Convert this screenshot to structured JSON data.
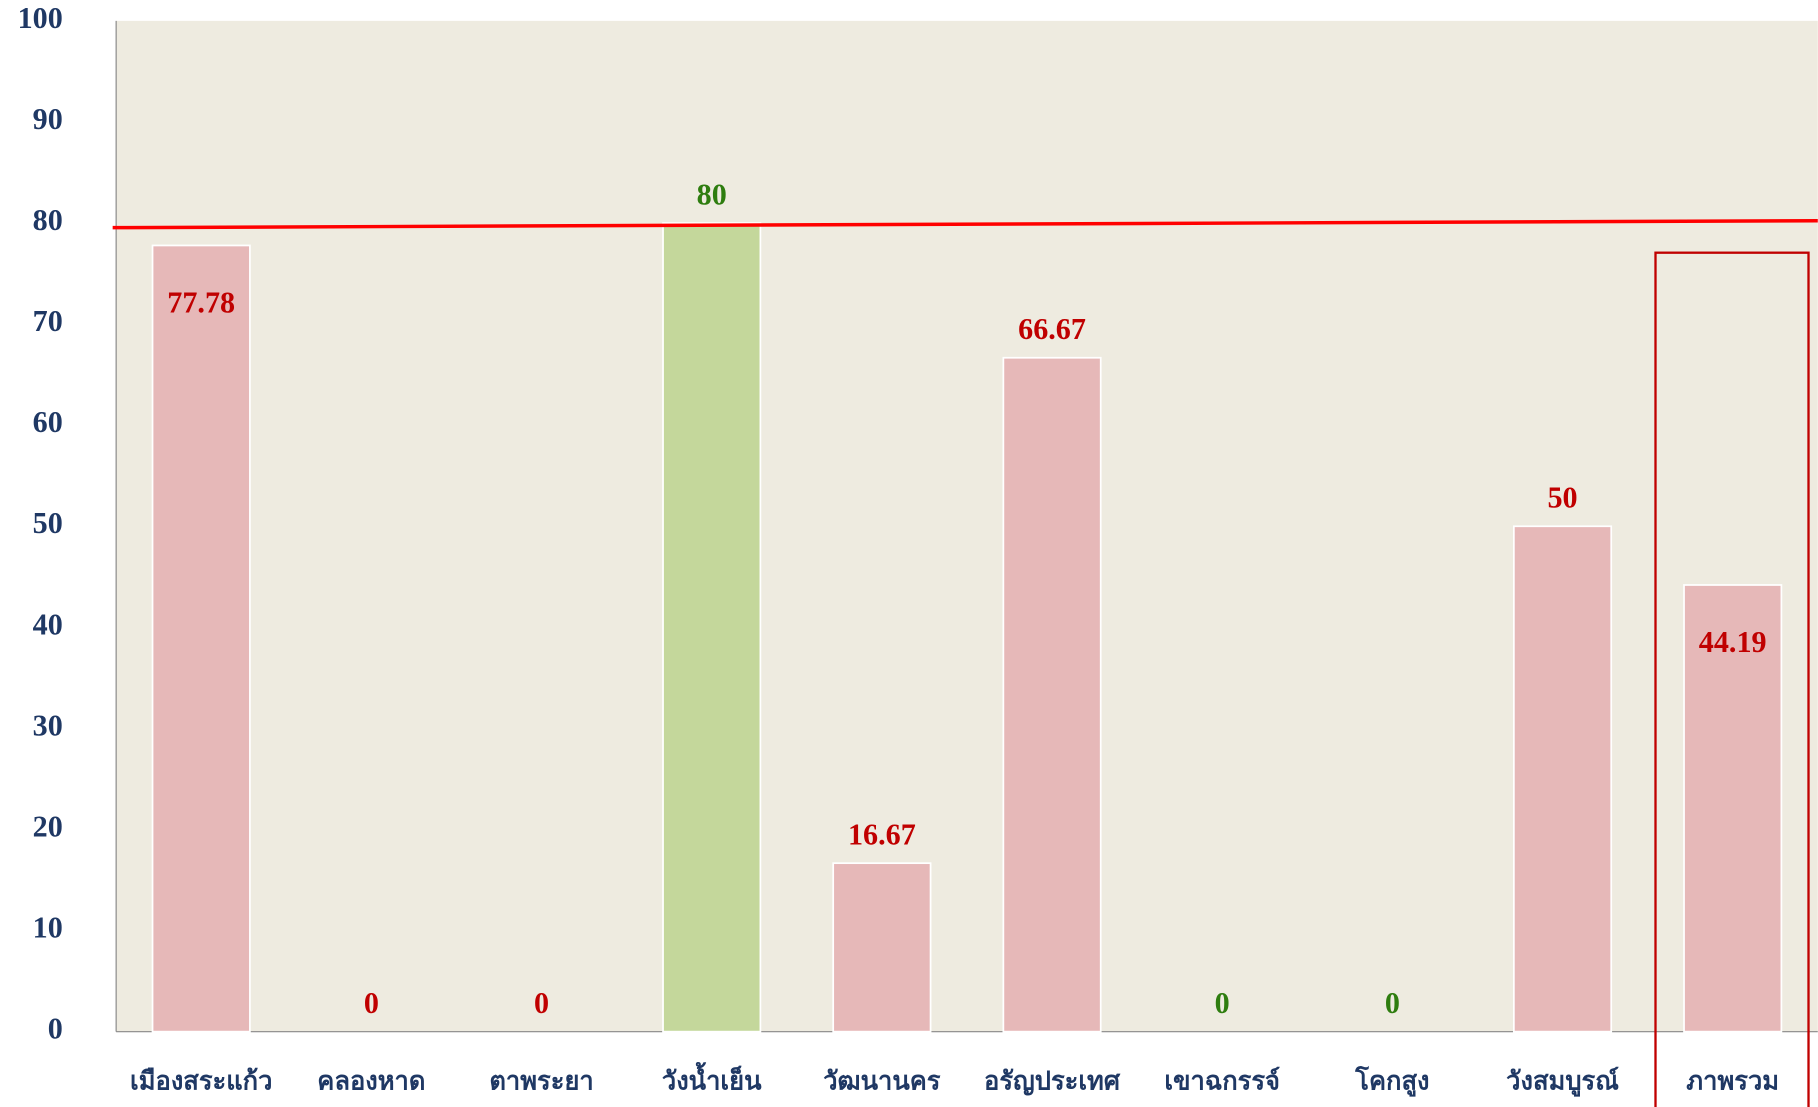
{
  "chart_data": {
    "type": "bar",
    "categories": [
      "เมืองสระแก้ว",
      "คลองหาด",
      "ตาพระยา",
      "วังน้ำเย็น",
      "วัฒนานคร",
      "อรัญประเทศ",
      "เขาฉกรรจ์",
      "โคกสูง",
      "วังสมบูรณ์",
      "ภาพรวม"
    ],
    "values": [
      77.78,
      0,
      0,
      80,
      16.67,
      66.67,
      0,
      0,
      50,
      44.19
    ],
    "colors": [
      "#e6b8b8",
      "#e6b8b8",
      "#e6b8b8",
      "#c4d79b",
      "#e6b8b8",
      "#e6b8b8",
      "#e6b8b8",
      "#e6b8b8",
      "#e6b8b8",
      "#e6b8b8"
    ],
    "label_colors": [
      "#c00000",
      "#c00000",
      "#c00000",
      "#2e7d0f",
      "#c00000",
      "#c00000",
      "#2e7d0f",
      "#2e7d0f",
      "#c00000",
      "#c00000"
    ],
    "reference_line": {
      "value": 80,
      "color": "#ff0000"
    },
    "ylim": [
      0,
      100
    ],
    "yticks": [
      0,
      10,
      20,
      30,
      40,
      50,
      60,
      70,
      80,
      90,
      100
    ]
  }
}
